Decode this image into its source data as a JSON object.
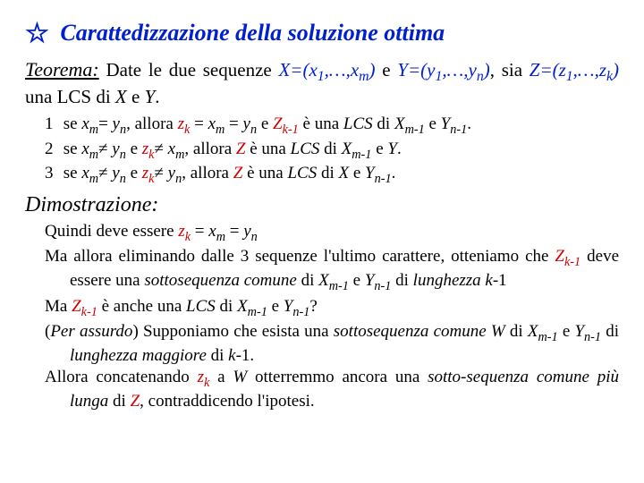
{
  "title_star": "☆",
  "title_text": "Carattedizzazione della soluzione ottima",
  "theorem_label": "Teorema:",
  "theorem_body_html": "Date le due sequenze <span class='it blue'>X=(x<sub>1</sub>,…,x<sub>m</sub>)</span> e <span class='it blue'>Y=(y<sub>1</sub>,…,y<sub>n</sub>)</span>, sia <span class='it blue'>Z=(z<sub>1</sub>,…,z<sub>k</sub>)</span> una LCS di <span class='it'>X</span> e <span class='it'>Y</span>.",
  "items": [
    "se <span class='it'>x<sub>m</sub></span>= <span class='it'>y<sub>n</sub></span>, allora <span class='it red'>z<sub>k</sub></span> = <span class='it'>x<sub>m</sub></span> = <span class='it'>y<sub>n</sub></span> e <span class='it red'>Z<sub>k-1</sub></span> è una <span class='it'>LCS</span> di <span class='it'>X<sub>m-1</sub></span> e <span class='it'>Y<sub>n-1</sub></span>.",
    "se <span class='it'>x<sub>m</sub></span>≠ <span class='it'>y<sub>n</sub></span> e <span class='it red'>z<sub>k</sub></span>≠ <span class='it'>x<sub>m</sub></span>, allora <span class='it red'>Z</span> è una <span class='it'>LCS</span> di <span class='it'>X<sub>m-1</sub></span> e <span class='it'>Y</span>.",
    "se <span class='it'>x<sub>m</sub></span>≠ <span class='it'>y<sub>n</sub></span> e <span class='it red'>z<sub>k</sub></span>≠ <span class='it'>y<sub>n</sub></span>, allora <span class='it red'>Z</span> è una <span class='it'>LCS</span> di <span class='it'>X</span> e <span class='it'>Y<sub>n-1</sub></span>."
  ],
  "dimo_label": "Dimostrazione:",
  "proof_paragraphs": [
    "Quindi deve essere <span class='it red'>z<sub>k</sub></span> = <span class='it'>x<sub>m</sub></span> = <span class='it'>y<sub>n</sub></span>",
    "Ma allora eliminando dalle 3 sequenze l'ultimo carattere, otteniamo che <span class='it red'>Z<sub>k-1</sub></span> deve essere una <span class='it'>sottosequenza comune</span> di <span class='it'>X<sub>m-1</sub></span> e <span class='it'>Y<sub>n-1</sub></span> di <span class='it'>lunghezza k</span>-1",
    "Ma <span class='it red'>Z<sub>k-1</sub></span> è anche una <span class='it'>LCS</span> di <span class='it'>X<sub>m-1</sub></span> e <span class='it'>Y<sub>n-1</sub></span>?",
    "(<span class='it'>Per assurdo</span>) Supponiamo che esista una <span class='it'>sottosequenza comune W</span> di <span class='it'>X<sub>m-1</sub></span> e <span class='it'>Y<sub>n-1</sub></span> di <span class='it'>lunghezza maggiore</span> di <span class='it'>k</span>-1.",
    "Allora concatenando <span class='it red'>z<sub>k</sub></span> a <span class='it'>W</span> otterremmo ancora una <span class='it'>sotto-sequenza comune più lunga</span> di <span class='it red'>Z</span>, contraddicendo l'ipotesi."
  ],
  "colors": {
    "red": "#d00000",
    "blue": "#0020d0",
    "black": "#000000",
    "bg": "#ffffff"
  }
}
